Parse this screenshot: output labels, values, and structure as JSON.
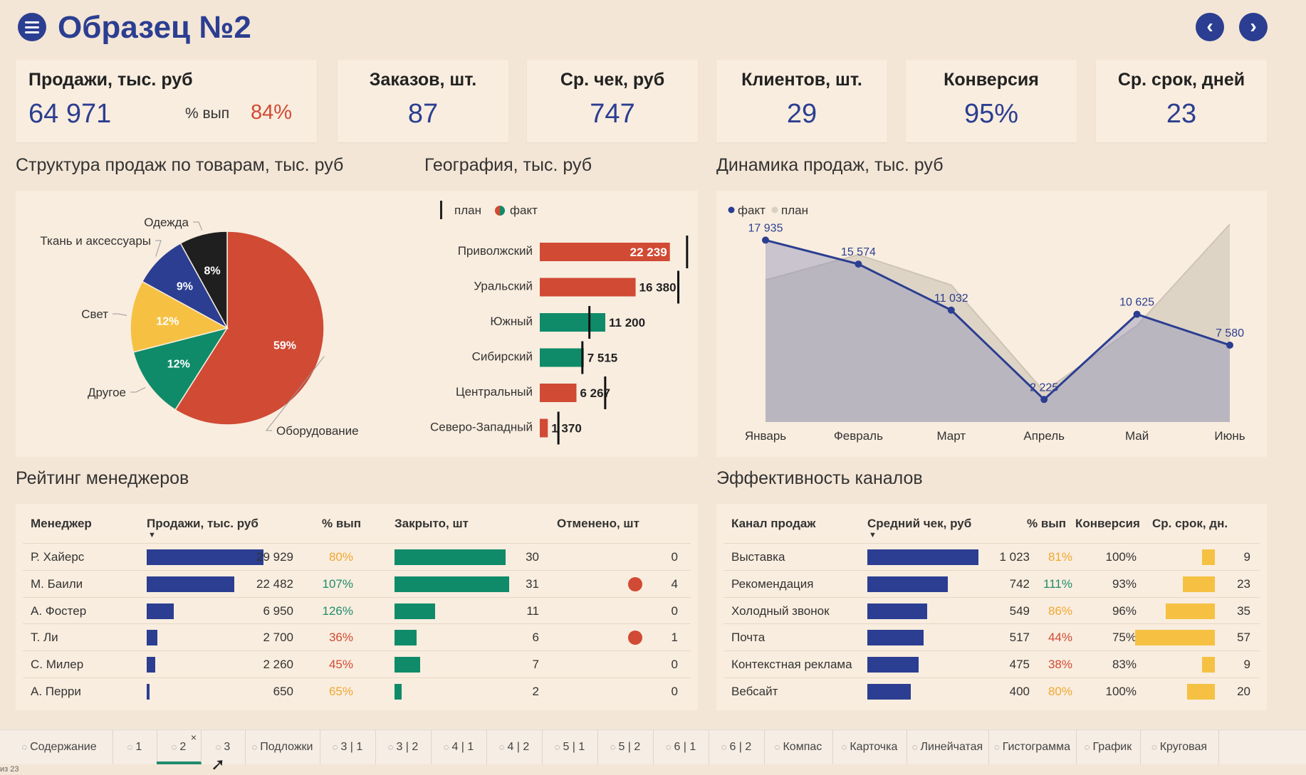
{
  "header": {
    "title": "Образец №2",
    "menu_icon": "menu-icon",
    "prev_icon": "chevron-left-icon",
    "next_icon": "chevron-right-icon"
  },
  "kpis": [
    {
      "label": "Продажи, тыс. руб",
      "value": "64 971",
      "sub_label": "% вып",
      "sub_value": "84%"
    },
    {
      "label": "Заказов, шт.",
      "value": "87"
    },
    {
      "label": "Ср. чек, руб",
      "value": "747"
    },
    {
      "label": "Клиентов, шт.",
      "value": "29"
    },
    {
      "label": "Конверсия",
      "value": "95%"
    },
    {
      "label": "Ср. срок, дней",
      "value": "23"
    }
  ],
  "colors": {
    "blue": "#2b3e91",
    "red": "#d04a34",
    "green": "#0f8b69",
    "yellow": "#f6c143",
    "black": "#1f1f1f",
    "orange_text": "#f0a830",
    "green_text": "#1f8c6d",
    "red_text": "#d04a34"
  },
  "chart_data": [
    {
      "type": "pie",
      "title": "Структура продаж по товарам, тыс. руб",
      "slices": [
        {
          "name": "Оборудование",
          "value": 59,
          "label": "59%",
          "color": "#d04a34"
        },
        {
          "name": "Другое",
          "value": 12,
          "label": "12%",
          "color": "#0f8b69"
        },
        {
          "name": "Свет",
          "value": 12,
          "label": "12%",
          "color": "#f6c143"
        },
        {
          "name": "Ткань и аксессуары",
          "value": 9,
          "label": "9%",
          "color": "#2b3e91"
        },
        {
          "name": "Одежда",
          "value": 8,
          "label": "8%",
          "color": "#1f1f1f"
        }
      ]
    },
    {
      "type": "bar",
      "title": "География, тыс. руб",
      "legend": [
        "план",
        "факт"
      ],
      "categories": [
        "Приволжский",
        "Уральский",
        "Южный",
        "Сибирский",
        "Центральный",
        "Северо-Западный"
      ],
      "fact": [
        22239,
        16380,
        11200,
        7515,
        6267,
        1370
      ],
      "fact_labels": [
        "22 239",
        "16 380",
        "11 200",
        "7 515",
        "6 267",
        "1 370"
      ],
      "plan": [
        25000,
        23500,
        8300,
        7100,
        11000,
        3000
      ],
      "fact_colors": [
        "#d04a34",
        "#d04a34",
        "#0f8b69",
        "#0f8b69",
        "#d04a34",
        "#d04a34"
      ],
      "xlim": [
        0,
        28000
      ]
    },
    {
      "type": "area",
      "title": "Динамика продаж, тыс. руб",
      "legend": [
        "факт",
        "план"
      ],
      "categories": [
        "Январь",
        "Февраль",
        "Март",
        "Апрель",
        "Май",
        "Июнь"
      ],
      "series": [
        {
          "name": "факт",
          "values": [
            17935,
            15574,
            11032,
            2225,
            10625,
            7580
          ],
          "labels": [
            "17 935",
            "15 574",
            "11 032",
            "2 225",
            "10 625",
            "7 580"
          ],
          "color": "#2b3e91"
        },
        {
          "name": "план",
          "values": [
            14000,
            16500,
            13500,
            3000,
            9500,
            19500
          ],
          "color": "#d9cfc2"
        }
      ],
      "ylim": [
        0,
        20000
      ]
    }
  ],
  "managers": {
    "title": "Рейтинг менеджеров",
    "headers": [
      "Менеджер",
      "Продажи, тыс. руб",
      "% вып",
      "Закрыто, шт",
      "Отменено, шт"
    ],
    "rows": [
      {
        "name": "Р. Хайерс",
        "sales": "29 929",
        "sales_v": 29929,
        "pct": "80%",
        "pct_color": "#f0a830",
        "closed": "30",
        "closed_v": 30,
        "cancel": "0",
        "dot": false
      },
      {
        "name": "М. Баили",
        "sales": "22 482",
        "sales_v": 22482,
        "pct": "107%",
        "pct_color": "#1f8c6d",
        "closed": "31",
        "closed_v": 31,
        "cancel": "4",
        "dot": true
      },
      {
        "name": "А. Фостер",
        "sales": "6 950",
        "sales_v": 6950,
        "pct": "126%",
        "pct_color": "#1f8c6d",
        "closed": "11",
        "closed_v": 11,
        "cancel": "0",
        "dot": false
      },
      {
        "name": "Т. Ли",
        "sales": "2 700",
        "sales_v": 2700,
        "pct": "36%",
        "pct_color": "#d04a34",
        "closed": "6",
        "closed_v": 6,
        "cancel": "1",
        "dot": true
      },
      {
        "name": "С. Милер",
        "sales": "2 260",
        "sales_v": 2260,
        "pct": "45%",
        "pct_color": "#d04a34",
        "closed": "7",
        "closed_v": 7,
        "cancel": "0",
        "dot": false
      },
      {
        "name": "А. Перри",
        "sales": "650",
        "sales_v": 650,
        "pct": "65%",
        "pct_color": "#f0a830",
        "closed": "2",
        "closed_v": 2,
        "cancel": "0",
        "dot": false
      }
    ]
  },
  "channels": {
    "title": "Эффективность каналов",
    "headers": [
      "Канал продаж",
      "Средний чек, руб",
      "% вып",
      "Конверсия",
      "Ср. срок, дн."
    ],
    "rows": [
      {
        "name": "Выставка",
        "check": "1 023",
        "check_v": 1023,
        "pct": "81%",
        "pct_color": "#f0a830",
        "conv": "100%",
        "term": "9",
        "term_v": 9
      },
      {
        "name": "Рекомендация",
        "check": "742",
        "check_v": 742,
        "pct": "111%",
        "pct_color": "#1f8c6d",
        "conv": "93%",
        "term": "23",
        "term_v": 23
      },
      {
        "name": "Холодный звонок",
        "check": "549",
        "check_v": 549,
        "pct": "86%",
        "pct_color": "#f0a830",
        "conv": "96%",
        "term": "35",
        "term_v": 35
      },
      {
        "name": "Почта",
        "check": "517",
        "check_v": 517,
        "pct": "44%",
        "pct_color": "#d04a34",
        "conv": "75%",
        "term": "57",
        "term_v": 57
      },
      {
        "name": "Контекстная реклама",
        "check": "475",
        "check_v": 475,
        "pct": "38%",
        "pct_color": "#d04a34",
        "conv": "83%",
        "term": "9",
        "term_v": 9
      },
      {
        "name": "Вебсайт",
        "check": "400",
        "check_v": 400,
        "pct": "80%",
        "pct_color": "#f0a830",
        "conv": "100%",
        "term": "20",
        "term_v": 20
      }
    ]
  },
  "tabs": [
    "Содержание",
    "1",
    "2",
    "3",
    "Подложки",
    "3 | 1",
    "3 | 2",
    "4 | 1",
    "4 | 2",
    "5 | 1",
    "5 | 2",
    "6 | 1",
    "6 | 2",
    "Компас",
    "Карточка",
    "Линейчатая",
    "Гистограмма",
    "График",
    "Круговая"
  ],
  "active_tab_close": "×",
  "status_text": "из 23"
}
